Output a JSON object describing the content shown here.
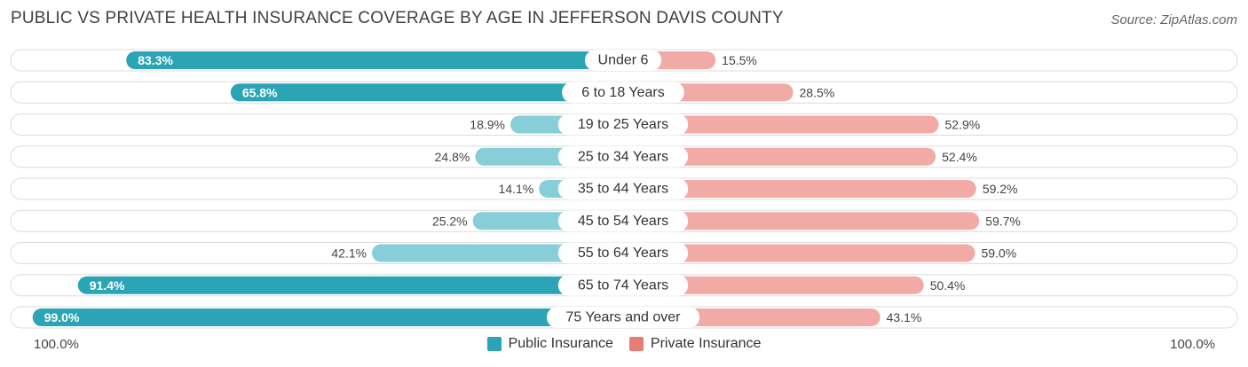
{
  "title": "PUBLIC VS PRIVATE HEALTH INSURANCE COVERAGE BY AGE IN JEFFERSON DAVIS COUNTY",
  "source": "Source: ZipAtlas.com",
  "axis": {
    "left_label": "100.0%",
    "right_label": "100.0%"
  },
  "legend": {
    "public_label": "Public Insurance",
    "private_label": "Private Insurance"
  },
  "colors": {
    "public_dark": "#2ba5b5",
    "public_light": "#88ced8",
    "private_dark": "#e87c77",
    "private_light": "#f1aaa6",
    "track": "#f1f1f1"
  },
  "chart_data": {
    "type": "bar",
    "orientation": "horizontal-diverging",
    "categories": [
      "Under 6",
      "6 to 18 Years",
      "19 to 25 Years",
      "25 to 34 Years",
      "35 to 44 Years",
      "45 to 54 Years",
      "55 to 64 Years",
      "65 to 74 Years",
      "75 Years and over"
    ],
    "series": [
      {
        "name": "Public Insurance",
        "values": [
          83.3,
          65.8,
          18.9,
          24.8,
          14.1,
          25.2,
          42.1,
          91.4,
          99.0
        ]
      },
      {
        "name": "Private Insurance",
        "values": [
          15.5,
          28.5,
          52.9,
          52.4,
          59.2,
          59.7,
          59.0,
          50.4,
          43.1
        ]
      }
    ],
    "value_labels": {
      "public": [
        "83.3%",
        "65.8%",
        "18.9%",
        "24.8%",
        "14.1%",
        "25.2%",
        "42.1%",
        "91.4%",
        "99.0%"
      ],
      "private": [
        "15.5%",
        "28.5%",
        "52.9%",
        "52.4%",
        "59.2%",
        "59.7%",
        "59.0%",
        "50.4%",
        "43.1%"
      ]
    },
    "xlim": [
      0,
      100
    ],
    "legend_position": "bottom-center"
  }
}
